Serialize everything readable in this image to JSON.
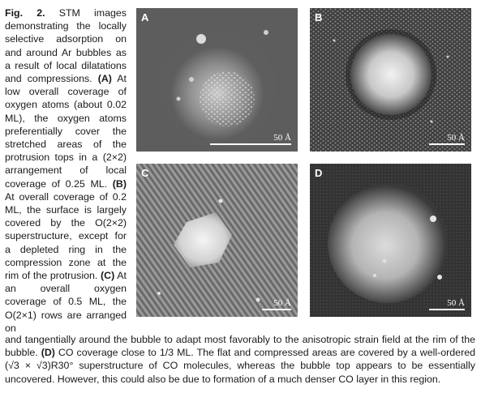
{
  "caption": {
    "fig_label": "Fig. 2.",
    "side_intro": "STM images demonstrating the locally selective adsorption on and around Ar bubbles as a result of local dilatations and compressions.",
    "label_A": "(A)",
    "text_A": "At low overall coverage of oxygen atoms (about 0.02 ML), the oxygen atoms preferentially cover the stretched areas of the protrusion tops in a (2×2) arrangement of local coverage of 0.25 ML.",
    "label_B": "(B)",
    "text_B": "At overall coverage of 0.2 ML, the surface is largely covered by the O(2×2) superstructure, except for a depleted ring in the compression zone at the rim of the protrusion.",
    "label_C": "(C)",
    "text_C_side": "At an overall oxygen coverage of 0.5 ML, the O(2×1) rows are arranged on",
    "text_C_bottom": "and tangentially around the bubble to adapt most favorably to the anisotropic strain field at the rim of the bubble.",
    "label_D": "(D)",
    "text_D": "CO coverage close to 1/3 ML. The flat and compressed areas are covered by a well-ordered (√3 × √3)R30° superstructure of CO molecules, whereas the bubble top appears to be essentially uncovered. However, this could also be due to formation of a much denser CO layer in this region."
  },
  "panels": [
    {
      "letter": "A",
      "scale": "50 Å"
    },
    {
      "letter": "B",
      "scale": "50 Å"
    },
    {
      "letter": "C",
      "scale": "50 Å"
    },
    {
      "letter": "D",
      "scale": "50 Å"
    }
  ]
}
